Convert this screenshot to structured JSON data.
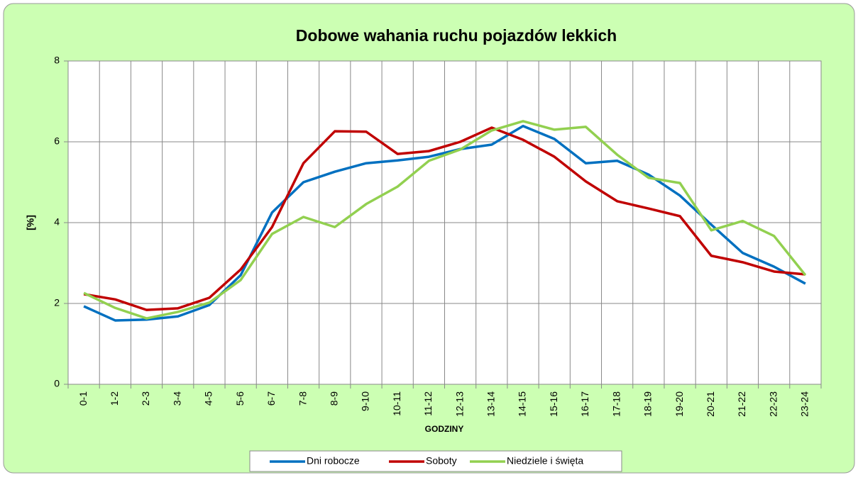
{
  "chart_data": {
    "type": "line",
    "title": "Dobowe wahania ruchu pojazdów lekkich",
    "x_label": "Godziny",
    "y_label": "[%]",
    "categories": [
      "0-1",
      "1-2",
      "2-3",
      "3-4",
      "4-5",
      "5-6",
      "6-7",
      "7-8",
      "8-9",
      "9-10",
      "10-11",
      "11-12",
      "12-13",
      "13-14",
      "14-15",
      "15-16",
      "16-17",
      "17-18",
      "18-19",
      "19-20",
      "20-21",
      "21-22",
      "22-23",
      "23-24"
    ],
    "series": [
      {
        "name": "Dni robocze",
        "color": "#0070c0",
        "values": [
          1.93,
          1.58,
          1.6,
          1.68,
          1.96,
          2.7,
          4.25,
          5.0,
          5.26,
          5.47,
          5.54,
          5.63,
          5.82,
          5.93,
          6.39,
          6.07,
          5.47,
          5.53,
          5.19,
          4.67,
          3.95,
          3.25,
          2.91,
          2.49
        ]
      },
      {
        "name": "Soboty",
        "color": "#c00000",
        "values": [
          2.23,
          2.1,
          1.84,
          1.88,
          2.14,
          2.84,
          3.89,
          5.47,
          6.26,
          6.25,
          5.7,
          5.77,
          6.0,
          6.35,
          6.05,
          5.63,
          5.02,
          4.53,
          4.35,
          4.16,
          3.18,
          3.02,
          2.79,
          2.72
        ]
      },
      {
        "name": "Niedziele i święta",
        "color": "#92d050",
        "values": [
          2.26,
          1.89,
          1.63,
          1.79,
          2.02,
          2.58,
          3.72,
          4.14,
          3.89,
          4.46,
          4.89,
          5.53,
          5.81,
          6.28,
          6.51,
          6.3,
          6.37,
          5.68,
          5.11,
          4.98,
          3.81,
          4.04,
          3.67,
          2.7
        ]
      }
    ],
    "ylim": [
      0,
      8
    ],
    "yticks": [
      0,
      2,
      4,
      6,
      8
    ],
    "grid": true,
    "legend": "bottom"
  }
}
